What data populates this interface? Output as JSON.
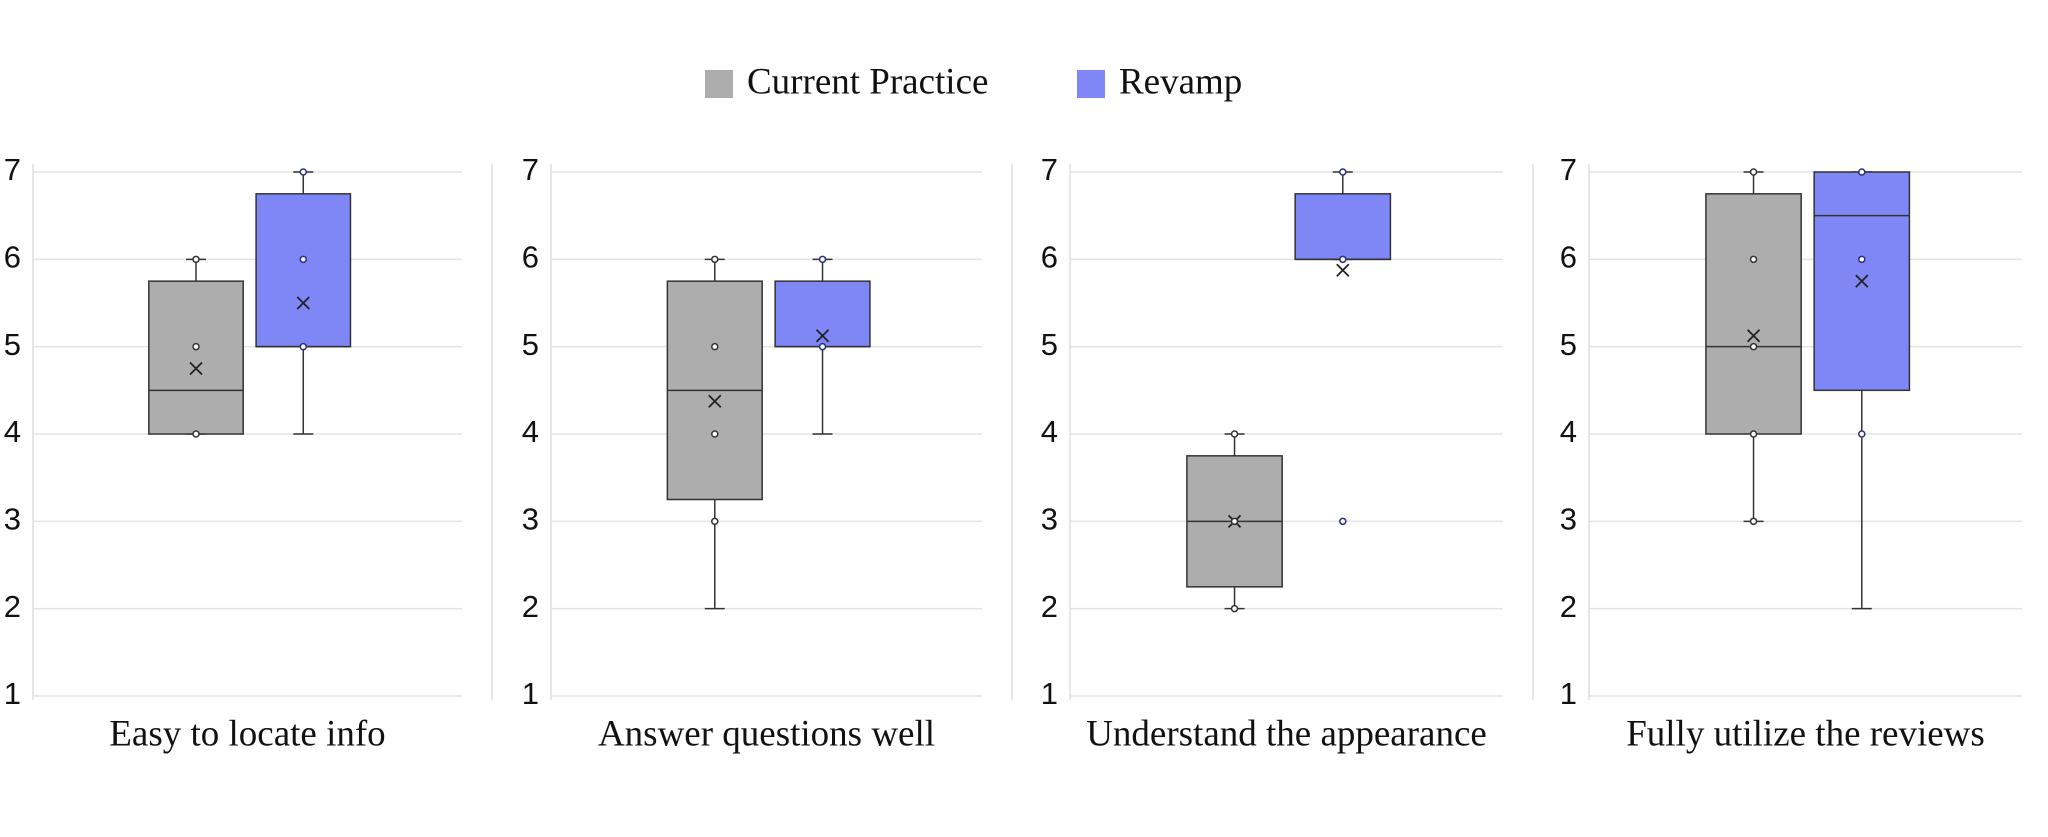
{
  "chart_data": [
    {
      "type": "box",
      "title": "Easy to locate info",
      "ylim": [
        1,
        7
      ],
      "yticks": [
        1,
        2,
        3,
        4,
        5,
        6,
        7
      ],
      "grid": true,
      "series": [
        {
          "name": "Current Practice",
          "color": "#adadad",
          "min": 4,
          "q1": 4,
          "median": 4.5,
          "q3": 5.75,
          "max": 6,
          "mean": 4.75,
          "points": [
            4,
            5,
            6
          ]
        },
        {
          "name": "Revamp",
          "color": "#7f86f5",
          "min": 4,
          "q1": 5,
          "median": 5,
          "q3": 6.75,
          "max": 7,
          "mean": 5.5,
          "points": [
            5,
            6,
            7
          ]
        }
      ]
    },
    {
      "type": "box",
      "title": "Answer questions well",
      "ylim": [
        1,
        7
      ],
      "yticks": [
        1,
        2,
        3,
        4,
        5,
        6,
        7
      ],
      "grid": true,
      "series": [
        {
          "name": "Current Practice",
          "color": "#adadad",
          "min": 2,
          "q1": 3.25,
          "median": 4.5,
          "q3": 5.75,
          "max": 6,
          "mean": 4.375,
          "points": [
            3,
            4,
            5,
            6
          ]
        },
        {
          "name": "Revamp",
          "color": "#7f86f5",
          "min": 4,
          "q1": 5,
          "median": 5,
          "q3": 5.75,
          "max": 6,
          "mean": 5.125,
          "points": [
            5,
            6
          ]
        }
      ]
    },
    {
      "type": "box",
      "title": "Understand the appearance",
      "ylim": [
        1,
        7
      ],
      "yticks": [
        1,
        2,
        3,
        4,
        5,
        6,
        7
      ],
      "grid": true,
      "series": [
        {
          "name": "Current Practice",
          "color": "#adadad",
          "min": 2,
          "q1": 2.25,
          "median": 3,
          "q3": 3.75,
          "max": 4,
          "mean": 3,
          "points": [
            2,
            3,
            4
          ]
        },
        {
          "name": "Revamp",
          "color": "#7f86f5",
          "min": 6,
          "q1": 6,
          "median": 6,
          "q3": 6.75,
          "max": 7,
          "mean": 5.875,
          "points": [
            3,
            6,
            7
          ]
        }
      ]
    },
    {
      "type": "box",
      "title": "Fully utilize the reviews",
      "ylim": [
        1,
        7
      ],
      "yticks": [
        1,
        2,
        3,
        4,
        5,
        6,
        7
      ],
      "grid": true,
      "series": [
        {
          "name": "Current Practice",
          "color": "#adadad",
          "min": 3,
          "q1": 4,
          "median": 5,
          "q3": 6.75,
          "max": 7,
          "mean": 5.125,
          "points": [
            3,
            4,
            5,
            6,
            7
          ]
        },
        {
          "name": "Revamp",
          "color": "#7f86f5",
          "min": 2,
          "q1": 4.5,
          "median": 6.5,
          "q3": 7,
          "max": 7,
          "mean": 5.75,
          "points": [
            4,
            6,
            7
          ]
        }
      ]
    }
  ]
}
